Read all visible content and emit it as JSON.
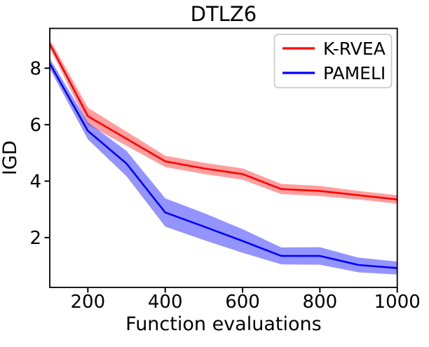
{
  "chart_data": {
    "type": "line",
    "title": "DTLZ6",
    "xlabel": "Function evaluations",
    "ylabel": "IGD",
    "x": [
      100,
      200,
      300,
      400,
      500,
      600,
      700,
      800,
      900,
      1000
    ],
    "xlim": [
      101.5,
      1000
    ],
    "ylim": [
      0.235,
      9.41
    ],
    "x_ticks": [
      200,
      400,
      600,
      800,
      1000
    ],
    "x_tick_labels": [
      "200",
      "400",
      "600",
      "800",
      "1000"
    ],
    "y_ticks": [
      2,
      4,
      6,
      8
    ],
    "y_tick_labels": [
      "2",
      "4",
      "6",
      "8"
    ],
    "grid": false,
    "legend_position": "upper right",
    "axis_color": "#000000",
    "legend_border_color": "#cbcbcb",
    "series": [
      {
        "name": "K-RVEA",
        "color": "#ff0000",
        "band_alpha": 0.38,
        "mean": [
          8.9,
          6.3,
          5.5,
          4.7,
          4.45,
          4.25,
          3.72,
          3.65,
          3.5,
          3.35
        ],
        "upper": [
          9.05,
          6.6,
          5.75,
          4.9,
          4.65,
          4.45,
          3.9,
          3.83,
          3.65,
          3.5
        ],
        "lower": [
          8.75,
          6.0,
          5.25,
          4.5,
          4.25,
          4.05,
          3.54,
          3.47,
          3.35,
          3.2
        ]
      },
      {
        "name": "PAMELI",
        "color": "#0000ff",
        "band_alpha": 0.42,
        "mean": [
          8.2,
          5.78,
          4.62,
          2.89,
          2.39,
          1.88,
          1.35,
          1.35,
          1.03,
          0.92
        ],
        "upper": [
          8.38,
          6.08,
          5.07,
          3.39,
          2.87,
          2.3,
          1.65,
          1.66,
          1.29,
          1.15
        ],
        "lower": [
          8.02,
          5.48,
          4.17,
          2.39,
          1.91,
          1.46,
          1.05,
          1.04,
          0.77,
          0.69
        ]
      }
    ]
  }
}
